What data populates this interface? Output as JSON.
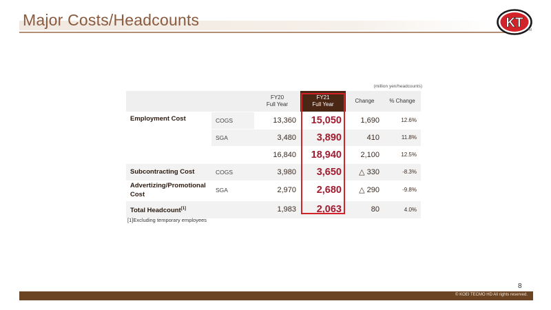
{
  "title": "Major Costs/Headcounts",
  "logo_text": "KT",
  "tm": "TM",
  "unit_note": "(million yen/headcounts)",
  "headers": {
    "fy20_line1": "FY20",
    "fy20_line2": "Full Year",
    "fy21_line1": "FY21",
    "fy21_line2": "Full Year",
    "change": "Change",
    "pct_change": "% Change"
  },
  "rows": {
    "emp_label": "Employment Cost",
    "emp_cogs": {
      "sub": "COGS",
      "fy20": "13,360",
      "fy21": "15,050",
      "change": "1,690",
      "pct": "12.6%"
    },
    "emp_sga": {
      "sub": "SGA",
      "fy20": "3,480",
      "fy21": "3,890",
      "change": "410",
      "pct": "11.8%"
    },
    "emp_total": {
      "fy20": "16,840",
      "fy21": "18,940",
      "change": "2,100",
      "pct": "12.5%"
    },
    "subcon": {
      "label": "Subcontracting Cost",
      "sub": "COGS",
      "fy20": "3,980",
      "fy21": "3,650",
      "change": "△ 330",
      "pct": "-8.3%"
    },
    "adv": {
      "label": "Advertizing/Promotional Cost",
      "sub": "SGA",
      "fy20": "2,970",
      "fy21": "2,680",
      "change": "△ 290",
      "pct": "-9.8%"
    },
    "headcount": {
      "label": "Total Headcount",
      "note_ref": "[1]",
      "fy20": "1,983",
      "fy21": "2,063",
      "change": "80",
      "pct": "4.0%"
    }
  },
  "footnote": "[1]Excluding temporary employees",
  "page_number": "8",
  "copyright": "© KOEI TECMO HD All rights reserved.",
  "colors": {
    "accent": "#a3192e",
    "brown": "#6b4423",
    "highlight_border": "#d2232a",
    "title": "#8a5a3e"
  }
}
